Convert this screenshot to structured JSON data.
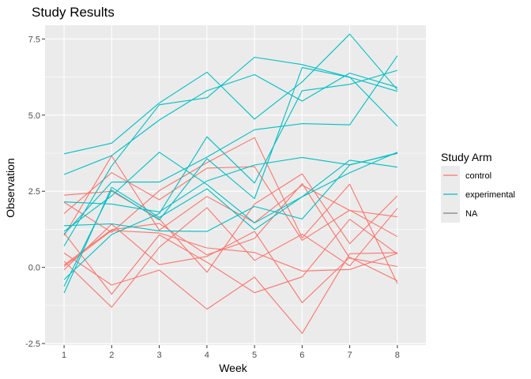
{
  "chart_data": {
    "type": "line",
    "title": "Study Results",
    "xlabel": "Week",
    "ylabel": "Observation",
    "x": [
      1,
      2,
      3,
      4,
      5,
      6,
      7,
      8
    ],
    "x_ticks": [
      "1",
      "2",
      "3",
      "4",
      "5",
      "6",
      "7",
      "8"
    ],
    "y_ticks": [
      -2.5,
      0.0,
      2.5,
      5.0,
      7.5
    ],
    "y_tick_labels": [
      "-2.5",
      "0.0",
      "2.5",
      "5.0",
      "7.5"
    ],
    "xlim": [
      0.6,
      8.6
    ],
    "ylim": [
      -2.55,
      7.95
    ],
    "grid": true,
    "legend": {
      "title": "Study Arm",
      "position": "right",
      "entries": [
        {
          "label": "control",
          "color": "#F8766D"
        },
        {
          "label": "experimental",
          "color": "#00BFC4"
        },
        {
          "label": "NA",
          "color": "#7F7F7F"
        }
      ]
    },
    "series": [
      {
        "group": "control",
        "color": "#F8766D",
        "values": [
          0.2,
          -1.31,
          0.66,
          1.96,
          0.23,
          1.09,
          0.05,
          1.94
        ]
      },
      {
        "group": "control",
        "color": "#F8766D",
        "values": [
          1.13,
          -0.88,
          1.07,
          0.17,
          -0.83,
          -0.31,
          1.58,
          0.44
        ]
      },
      {
        "group": "control",
        "color": "#F8766D",
        "values": [
          1.77,
          3.11,
          2.22,
          3.26,
          3.31,
          0.89,
          1.88,
          1.01
        ]
      },
      {
        "group": "control",
        "color": "#F8766D",
        "values": [
          1.04,
          3.66,
          1.22,
          2.33,
          1.47,
          2.7,
          1.87,
          1.66
        ]
      },
      {
        "group": "control",
        "color": "#F8766D",
        "values": [
          0.47,
          -0.58,
          -0.09,
          -1.37,
          -0.32,
          -2.17,
          0.45,
          0.48
        ]
      },
      {
        "group": "control",
        "color": "#F8766D",
        "values": [
          2.37,
          2.5,
          1.59,
          -0.16,
          2.08,
          3.07,
          0.78,
          2.35
        ]
      },
      {
        "group": "control",
        "color": "#F8766D",
        "values": [
          0.03,
          1.21,
          1.13,
          0.64,
          0.49,
          -0.12,
          -0.07,
          0.46
        ]
      },
      {
        "group": "control",
        "color": "#F8766D",
        "values": [
          -0.08,
          1.42,
          0.09,
          0.36,
          1.18,
          -1.16,
          0.33,
          -0.44
        ]
      },
      {
        "group": "control",
        "color": "#F8766D",
        "values": [
          0.08,
          1.24,
          1.44,
          0.41,
          0.95,
          2.75,
          0.3,
          0.03
        ]
      },
      {
        "group": "control",
        "color": "#F8766D",
        "values": [
          2.14,
          1.15,
          2.52,
          3.44,
          4.26,
          0.97,
          2.73,
          -0.53
        ]
      },
      {
        "group": "experimental",
        "color": "#00BFC4",
        "values": [
          3.05,
          3.67,
          4.84,
          5.8,
          6.33,
          5.46,
          6.38,
          5.91
        ]
      },
      {
        "group": "experimental",
        "color": "#00BFC4",
        "values": [
          -0.84,
          2.63,
          1.64,
          2.58,
          1.24,
          2.32,
          3.11,
          3.78
        ]
      },
      {
        "group": "experimental",
        "color": "#00BFC4",
        "values": [
          2.15,
          2.08,
          1.82,
          2.84,
          3.36,
          3.61,
          3.37,
          3.74
        ]
      },
      {
        "group": "experimental",
        "color": "#00BFC4",
        "values": [
          -0.62,
          2.54,
          1.56,
          3.57,
          2.26,
          6.56,
          6.24,
          5.78
        ]
      },
      {
        "group": "experimental",
        "color": "#00BFC4",
        "values": [
          0.7,
          3.33,
          5.34,
          5.57,
          6.9,
          6.66,
          6.25,
          4.64
        ]
      },
      {
        "group": "experimental",
        "color": "#00BFC4",
        "values": [
          3.73,
          4.08,
          5.4,
          6.41,
          4.87,
          6.09,
          7.66,
          5.83
        ]
      },
      {
        "group": "experimental",
        "color": "#00BFC4",
        "values": [
          1.18,
          2.35,
          3.78,
          2.72,
          1.46,
          2.32,
          3.52,
          3.29
        ]
      },
      {
        "group": "experimental",
        "color": "#00BFC4",
        "values": [
          1.37,
          1.43,
          1.2,
          1.18,
          2.0,
          1.59,
          3.36,
          3.76
        ]
      },
      {
        "group": "experimental",
        "color": "#00BFC4",
        "values": [
          -0.4,
          1.08,
          1.77,
          4.29,
          2.77,
          5.8,
          6.01,
          6.47
        ]
      },
      {
        "group": "experimental",
        "color": "#00BFC4",
        "values": [
          1.09,
          2.8,
          2.8,
          3.62,
          4.52,
          4.72,
          4.68,
          6.95
        ]
      }
    ]
  }
}
